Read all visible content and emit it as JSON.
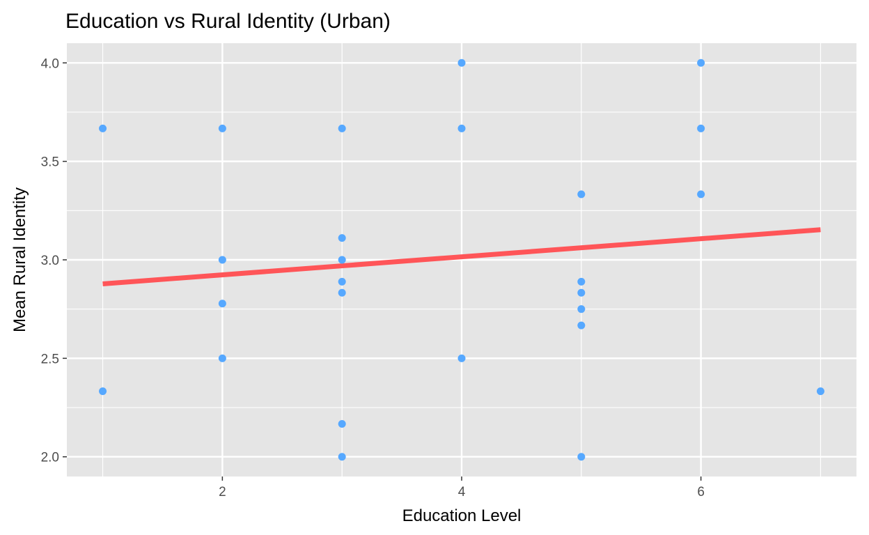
{
  "chart_data": {
    "type": "scatter",
    "title": "Education vs Rural Identity (Urban)",
    "xlabel": "Education Level",
    "ylabel": "Mean Rural Identity",
    "xlim": [
      0.7,
      7.3
    ],
    "ylim": [
      1.9,
      4.1
    ],
    "x_ticks": [
      2,
      4,
      6
    ],
    "x_tick_labels": [
      "2",
      "4",
      "6"
    ],
    "y_ticks": [
      2.0,
      2.5,
      3.0,
      3.5,
      4.0
    ],
    "y_tick_labels": [
      "2.0",
      "2.5",
      "3.0",
      "3.5",
      "4.0"
    ],
    "grid": true,
    "legend": "none",
    "colors": {
      "panel": "#e5e5e5",
      "grid": "#ffffff",
      "points": "#56a8ff",
      "trend": "#ff5558"
    },
    "series": [
      {
        "points": [
          {
            "x": 1,
            "y": 3.667
          },
          {
            "x": 1,
            "y": 2.333
          },
          {
            "x": 2,
            "y": 3.667
          },
          {
            "x": 2,
            "y": 3.0
          },
          {
            "x": 2,
            "y": 2.778
          },
          {
            "x": 2,
            "y": 2.5
          },
          {
            "x": 3,
            "y": 3.667
          },
          {
            "x": 3,
            "y": 3.111
          },
          {
            "x": 3,
            "y": 3.0
          },
          {
            "x": 3,
            "y": 2.889
          },
          {
            "x": 3,
            "y": 2.833
          },
          {
            "x": 3,
            "y": 2.167
          },
          {
            "x": 3,
            "y": 2.0
          },
          {
            "x": 4,
            "y": 4.0
          },
          {
            "x": 4,
            "y": 3.667
          },
          {
            "x": 4,
            "y": 2.5
          },
          {
            "x": 5,
            "y": 3.333
          },
          {
            "x": 5,
            "y": 2.889
          },
          {
            "x": 5,
            "y": 2.833
          },
          {
            "x": 5,
            "y": 2.75
          },
          {
            "x": 5,
            "y": 2.667
          },
          {
            "x": 5,
            "y": 2.0
          },
          {
            "x": 6,
            "y": 4.0
          },
          {
            "x": 6,
            "y": 3.667
          },
          {
            "x": 6,
            "y": 3.333
          },
          {
            "x": 7,
            "y": 2.333
          }
        ]
      }
    ],
    "trend_line": {
      "x": [
        1,
        7
      ],
      "y": [
        2.878,
        3.153
      ]
    }
  }
}
